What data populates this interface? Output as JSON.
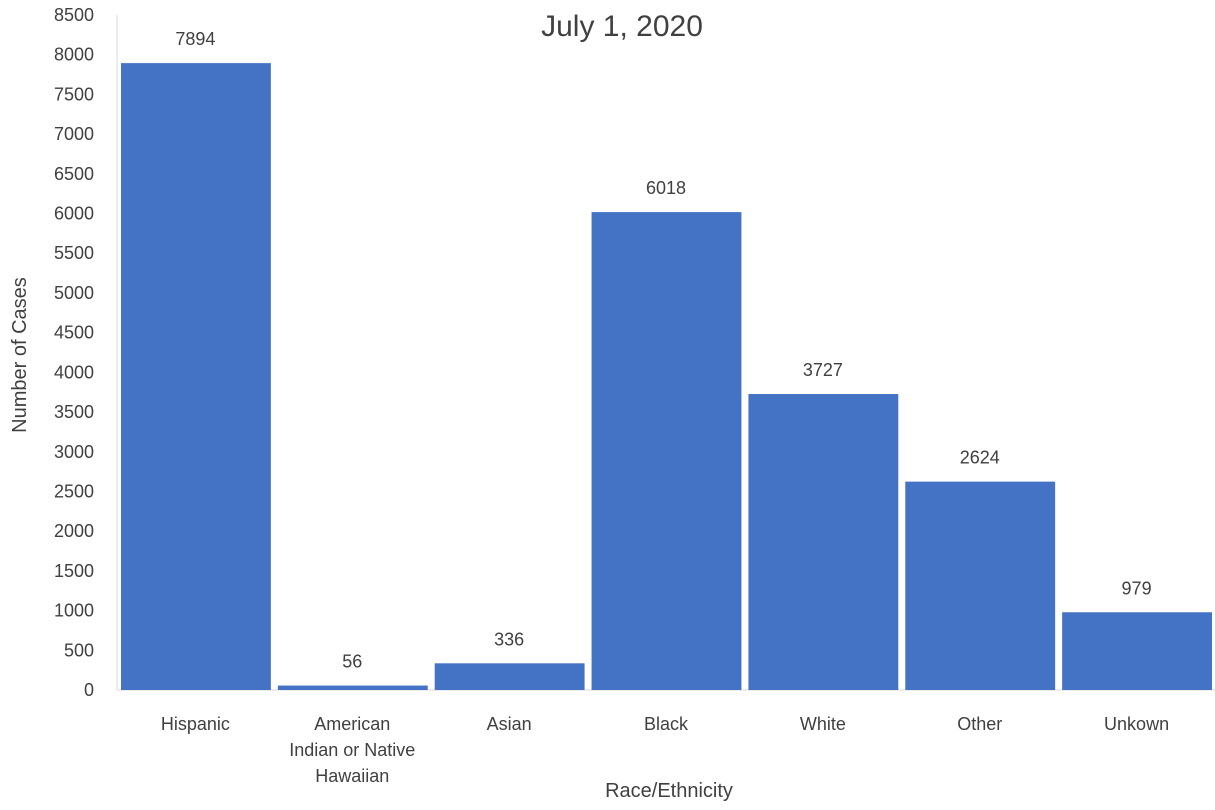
{
  "chart_data": {
    "type": "bar",
    "title": "July 1, 2020",
    "xlabel": "Race/Ethnicity",
    "ylabel": "Number of Cases",
    "categories": [
      [
        "Hispanic"
      ],
      [
        "American",
        "Indian or Native",
        "Hawaiian"
      ],
      [
        "Asian"
      ],
      [
        "Black"
      ],
      [
        "White"
      ],
      [
        "Other"
      ],
      [
        "Unkown"
      ]
    ],
    "values": [
      7894,
      56,
      336,
      6018,
      3727,
      2624,
      979
    ],
    "ylim": [
      0,
      8500
    ],
    "yticks": [
      0,
      500,
      1000,
      1500,
      2000,
      2500,
      3000,
      3500,
      4000,
      4500,
      5000,
      5500,
      6000,
      6500,
      7000,
      7500,
      8000,
      8500
    ],
    "bar_color": "#4472C4",
    "grid": false,
    "legend": "none"
  }
}
